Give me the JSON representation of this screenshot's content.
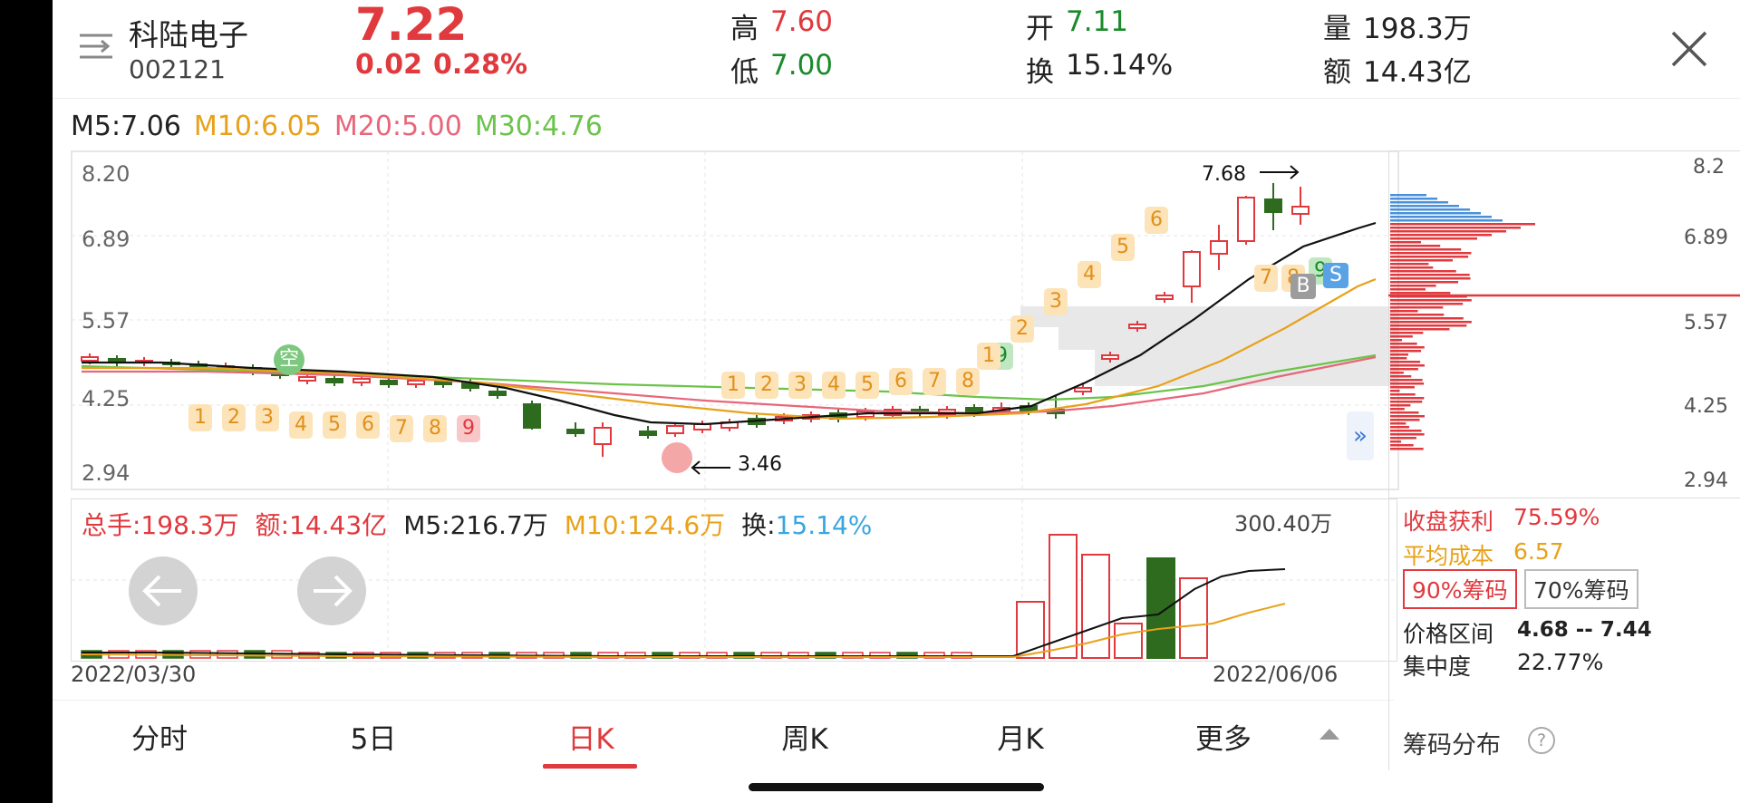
{
  "header": {
    "stock_name": "科陆电子",
    "stock_code": "002121",
    "price": "7.22",
    "change": "0.02",
    "change_pct": "0.28%",
    "high_label": "高",
    "high_value": "7.60",
    "low_label": "低",
    "low_value": "7.00",
    "open_label": "开",
    "open_value": "7.11",
    "turnover_label": "换",
    "turnover_value": "15.14%",
    "volume_label": "量",
    "volume_value": "198.3万",
    "amount_label": "额",
    "amount_value": "14.43亿"
  },
  "ma_legend": {
    "m5": "M5:7.06",
    "m10": "M10:6.05",
    "m20": "M20:5.00",
    "m30": "M30:4.76"
  },
  "price_axis": [
    "8.20",
    "6.89",
    "5.57",
    "4.25",
    "2.94"
  ],
  "annotations": {
    "high_marker": "7.68",
    "low_marker": "3.46",
    "kong_badge": "空",
    "b_badge": "B",
    "s_badge": "S"
  },
  "td_counts": {
    "first_run": [
      "1",
      "2",
      "3",
      "4",
      "5",
      "6",
      "7",
      "8",
      "9"
    ],
    "second_run": [
      "1",
      "2",
      "3",
      "4",
      "5",
      "6",
      "7",
      "8",
      "9"
    ],
    "third_run": [
      "1",
      "2",
      "3",
      "4",
      "5",
      "6"
    ],
    "fourth_run": [
      "7",
      "8",
      "9"
    ]
  },
  "volume_legend": {
    "total": "总手:198.3万",
    "amount": "额:14.43亿",
    "m5": "M5:216.7万",
    "m10": "M10:124.6万",
    "turnover_label": "换:",
    "turnover_value": "15.14%",
    "max": "300.40万"
  },
  "date_range": {
    "start": "2022/03/30",
    "end": "2022/06/06"
  },
  "tabs": [
    "分时",
    "5日",
    "日K",
    "周K",
    "月K",
    "更多"
  ],
  "chip_axis": [
    "8.2",
    "6.89",
    "5.57",
    "4.25",
    "2.94"
  ],
  "chip_info": {
    "profit_label": "收盘获利",
    "profit_value": "75.59%",
    "avg_cost_label": "平均成本",
    "avg_cost_value": "6.57",
    "chip90": "90%筹码",
    "chip70": "70%筹码",
    "range_label": "价格区间",
    "range_value": "4.68 -- 7.44",
    "concentration_label": "集中度",
    "concentration_value": "22.77%",
    "dist_title": "筹码分布",
    "help": "?"
  },
  "colors": {
    "up": "#e0393e",
    "down": "#2e6b1f",
    "m10": "#e8a11a",
    "m20": "#e8667a",
    "m30": "#6cc34a",
    "turnover": "#3aa6e0"
  }
}
